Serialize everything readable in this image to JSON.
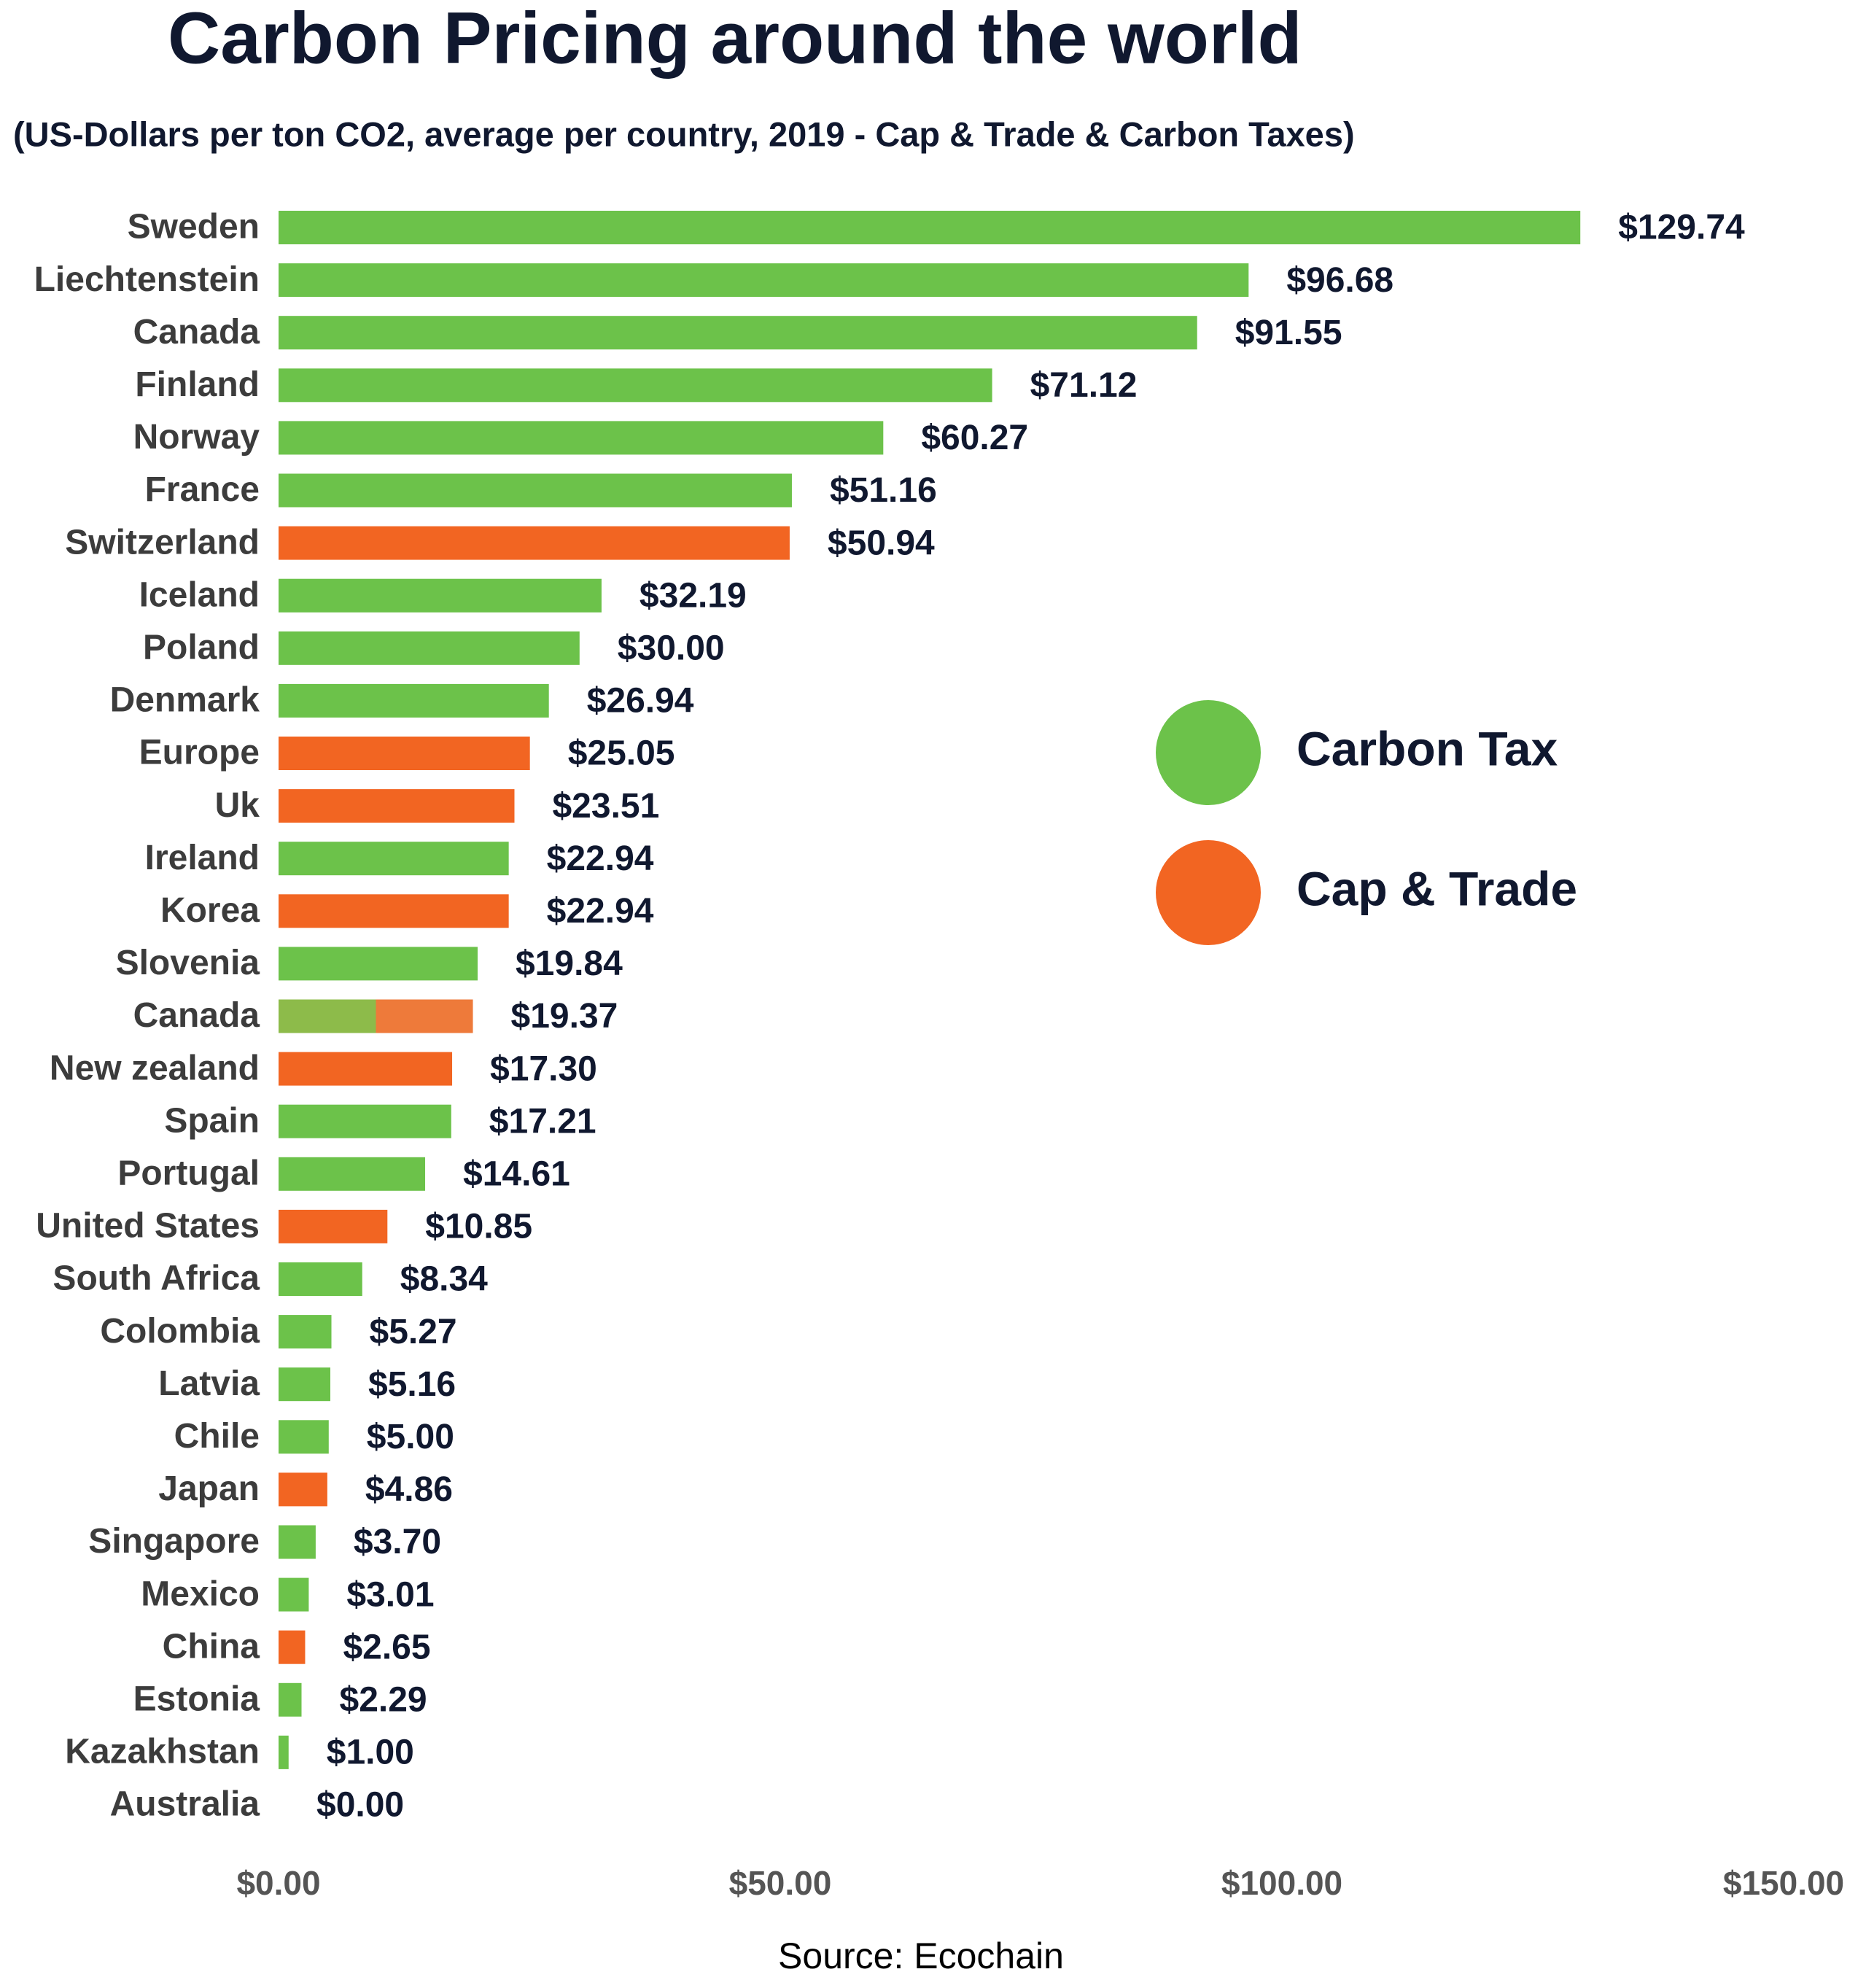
{
  "chart_data": {
    "type": "barh",
    "title": "Carbon Pricing around the world",
    "subtitle": "(US-Dollars per ton CO2, average per country, 2019 - Cap & Trade & Carbon Taxes)",
    "source": "Source: Ecochain",
    "categories": [
      "Sweden",
      "Liechtenstein",
      "Canada",
      "Finland",
      "Norway",
      "France",
      "Switzerland",
      "Iceland",
      "Poland",
      "Denmark",
      "Europe",
      "Uk",
      "Ireland",
      "Korea",
      "Slovenia",
      "Canada",
      "New zealand",
      "Spain",
      "Portugal",
      "United States",
      "South Africa",
      "Colombia",
      "Latvia",
      "Chile",
      "Japan",
      "Singapore",
      "Mexico",
      "China",
      "Estonia",
      "Kazakhstan",
      "Australia"
    ],
    "values": [
      129.74,
      96.68,
      91.55,
      71.12,
      60.27,
      51.16,
      50.94,
      32.19,
      30.0,
      26.94,
      25.05,
      23.51,
      22.94,
      22.94,
      19.84,
      19.37,
      17.3,
      17.21,
      14.61,
      10.85,
      8.34,
      5.27,
      5.16,
      5.0,
      4.86,
      3.7,
      3.01,
      2.65,
      2.29,
      1.0,
      0.0
    ],
    "value_labels": [
      "$129.74",
      "$96.68",
      "$91.55",
      "$71.12",
      "$60.27",
      "$51.16",
      "$50.94",
      "$32.19",
      "$30.00",
      "$26.94",
      "$25.05",
      "$23.51",
      "$22.94",
      "$22.94",
      "$19.84",
      "$19.37",
      "$17.30",
      "$17.21",
      "$14.61",
      "$10.85",
      "$8.34",
      "$5.27",
      "$5.16",
      "$5.00",
      "$4.86",
      "$3.70",
      "$3.01",
      "$2.65",
      "$2.29",
      "$1.00",
      "$0.00"
    ],
    "bar_colors": [
      "#6cc24a",
      "#6cc24a",
      "#6cc24a",
      "#6cc24a",
      "#6cc24a",
      "#6cc24a",
      "#f26522",
      "#6cc24a",
      "#6cc24a",
      "#6cc24a",
      "#f26522",
      "#f26522",
      "#6cc24a",
      "#f26522",
      "#6cc24a",
      [
        "#8dbb4a",
        "#ee7a3a"
      ],
      "#f26522",
      "#6cc24a",
      "#6cc24a",
      "#f26522",
      "#6cc24a",
      "#6cc24a",
      "#6cc24a",
      "#6cc24a",
      "#f26522",
      "#6cc24a",
      "#6cc24a",
      "#f26522",
      "#6cc24a",
      "#6cc24a",
      "#6cc24a"
    ],
    "legend": [
      {
        "name": "Carbon Tax",
        "color": "#6cc24a"
      },
      {
        "name": "Cap & Trade",
        "color": "#f26522"
      }
    ],
    "xlim": [
      0,
      150
    ],
    "xticks": [
      {
        "value": 0,
        "label": "$0.00"
      },
      {
        "value": 50,
        "label": "$50.00"
      },
      {
        "value": 100,
        "label": "$100.00"
      },
      {
        "value": 150,
        "label": "$150.00"
      }
    ],
    "grid": false
  }
}
